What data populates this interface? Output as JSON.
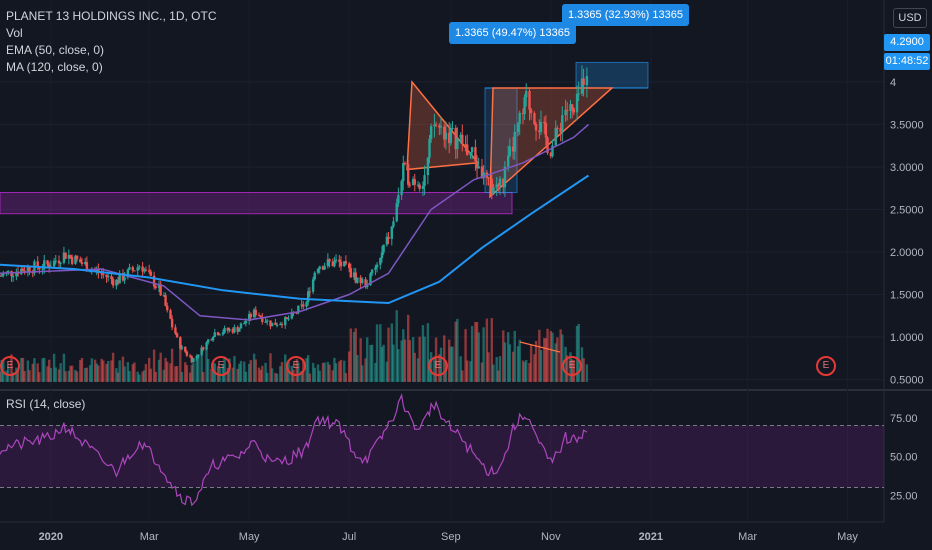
{
  "legend": {
    "title": "PLANET 13 HOLDINGS INC., 1D, OTC",
    "vol": "Vol",
    "ema": "EMA (50, close, 0)",
    "ma": "MA (120, close, 0)"
  },
  "rsi_legend": "RSI (14, close)",
  "currency": "USD",
  "price_tags": {
    "last": "4.2900",
    "countdown": "01:48:52"
  },
  "callouts": [
    "1.3365 (49.47%) 13365",
    "1.3365 (32.93%) 13365"
  ],
  "earnings_marker": "E",
  "colors": {
    "background": "#131722",
    "up": "#26a69a",
    "down": "#ef5350",
    "ema": "#7e57c2",
    "ma": "#2196f3",
    "rsi": "#ab47bc",
    "zone": "#9c27b0",
    "triangle": "#ff7043",
    "measure": "#2196f3"
  },
  "chart_data": [
    {
      "type": "candlestick",
      "title": "PLANET 13 HOLDINGS INC., 1D, OTC",
      "y_ticks": [
        "4",
        "3.5000",
        "3.0000",
        "2.5000",
        "2.0000",
        "1.5000",
        "1.0000",
        "0.5000"
      ],
      "x_ticks": [
        "2020",
        "Mar",
        "May",
        "Jul",
        "Sep",
        "Nov",
        "2021",
        "Mar",
        "May"
      ],
      "ylim": [
        0.2,
        4.3
      ],
      "series_path": [
        [
          "2019-12-01",
          1.72
        ],
        [
          "2019-12-15",
          1.8
        ],
        [
          "2020-01-01",
          1.85
        ],
        [
          "2020-01-10",
          1.98
        ],
        [
          "2020-01-25",
          1.82
        ],
        [
          "2020-02-10",
          1.65
        ],
        [
          "2020-02-25",
          1.85
        ],
        [
          "2020-03-08",
          1.55
        ],
        [
          "2020-03-20",
          0.9
        ],
        [
          "2020-03-28",
          0.72
        ],
        [
          "2020-04-10",
          1.05
        ],
        [
          "2020-04-25",
          1.1
        ],
        [
          "2020-05-05",
          1.3
        ],
        [
          "2020-05-15",
          1.15
        ],
        [
          "2020-05-25",
          1.2
        ],
        [
          "2020-06-05",
          1.4
        ],
        [
          "2020-06-12",
          1.85
        ],
        [
          "2020-06-25",
          1.88
        ],
        [
          "2020-07-05",
          1.7
        ],
        [
          "2020-07-12",
          1.62
        ],
        [
          "2020-07-20",
          1.9
        ],
        [
          "2020-07-28",
          2.3
        ],
        [
          "2020-08-03",
          2.95
        ],
        [
          "2020-08-10",
          2.85
        ],
        [
          "2020-08-16",
          2.85
        ],
        [
          "2020-08-22",
          3.5
        ],
        [
          "2020-08-30",
          3.4
        ],
        [
          "2020-09-08",
          3.3
        ],
        [
          "2020-09-16",
          3.1
        ],
        [
          "2020-09-25",
          2.75
        ],
        [
          "2020-10-03",
          2.8
        ],
        [
          "2020-10-10",
          3.3
        ],
        [
          "2020-10-18",
          3.8
        ],
        [
          "2020-10-25",
          3.5
        ],
        [
          "2020-11-02",
          3.2
        ],
        [
          "2020-11-10",
          3.7
        ],
        [
          "2020-11-16",
          3.6
        ],
        [
          "2020-11-24",
          4.29
        ]
      ],
      "ema_50": [
        [
          "2019-12-01",
          1.75
        ],
        [
          "2020-02-01",
          1.8
        ],
        [
          "2020-03-10",
          1.6
        ],
        [
          "2020-04-01",
          1.25
        ],
        [
          "2020-05-01",
          1.2
        ],
        [
          "2020-06-01",
          1.3
        ],
        [
          "2020-07-01",
          1.5
        ],
        [
          "2020-07-25",
          1.75
        ],
        [
          "2020-08-20",
          2.5
        ],
        [
          "2020-09-15",
          2.85
        ],
        [
          "2020-10-15",
          3.05
        ],
        [
          "2020-11-15",
          3.35
        ],
        [
          "2020-11-24",
          3.5
        ]
      ],
      "ma_120": [
        [
          "2019-12-01",
          1.85
        ],
        [
          "2020-01-15",
          1.8
        ],
        [
          "2020-03-01",
          1.7
        ],
        [
          "2020-04-15",
          1.55
        ],
        [
          "2020-06-01",
          1.45
        ],
        [
          "2020-07-25",
          1.4
        ],
        [
          "2020-08-25",
          1.65
        ],
        [
          "2020-09-20",
          2.05
        ],
        [
          "2020-10-20",
          2.45
        ],
        [
          "2020-11-24",
          2.9
        ]
      ],
      "support_zone": [
        2.45,
        2.7
      ],
      "annotations": [
        "1.3365 (49.47%) 13365",
        "1.3365 (32.93%) 13365"
      ]
    },
    {
      "type": "line",
      "title": "RSI (14, close)",
      "y_ticks": [
        "75.00",
        "50.00",
        "25.00"
      ],
      "ylim": [
        10,
        95
      ],
      "bands": [
        30,
        70
      ],
      "values": [
        [
          "2019-12-01",
          55
        ],
        [
          "2019-12-15",
          58
        ],
        [
          "2020-01-01",
          62
        ],
        [
          "2020-01-10",
          70
        ],
        [
          "2020-01-25",
          55
        ],
        [
          "2020-02-10",
          40
        ],
        [
          "2020-02-25",
          60
        ],
        [
          "2020-03-08",
          45
        ],
        [
          "2020-03-20",
          25
        ],
        [
          "2020-03-28",
          20
        ],
        [
          "2020-04-10",
          45
        ],
        [
          "2020-04-25",
          50
        ],
        [
          "2020-05-05",
          60
        ],
        [
          "2020-05-15",
          45
        ],
        [
          "2020-05-25",
          48
        ],
        [
          "2020-06-05",
          55
        ],
        [
          "2020-06-12",
          75
        ],
        [
          "2020-06-25",
          70
        ],
        [
          "2020-07-05",
          52
        ],
        [
          "2020-07-12",
          48
        ],
        [
          "2020-07-20",
          60
        ],
        [
          "2020-07-28",
          75
        ],
        [
          "2020-08-03",
          88
        ],
        [
          "2020-08-10",
          68
        ],
        [
          "2020-08-16",
          72
        ],
        [
          "2020-08-22",
          85
        ],
        [
          "2020-08-30",
          70
        ],
        [
          "2020-09-08",
          62
        ],
        [
          "2020-09-16",
          50
        ],
        [
          "2020-09-25",
          40
        ],
        [
          "2020-10-03",
          45
        ],
        [
          "2020-10-10",
          70
        ],
        [
          "2020-10-18",
          78
        ],
        [
          "2020-10-25",
          58
        ],
        [
          "2020-11-02",
          45
        ],
        [
          "2020-11-10",
          62
        ],
        [
          "2020-11-16",
          60
        ],
        [
          "2020-11-24",
          70
        ]
      ]
    }
  ]
}
